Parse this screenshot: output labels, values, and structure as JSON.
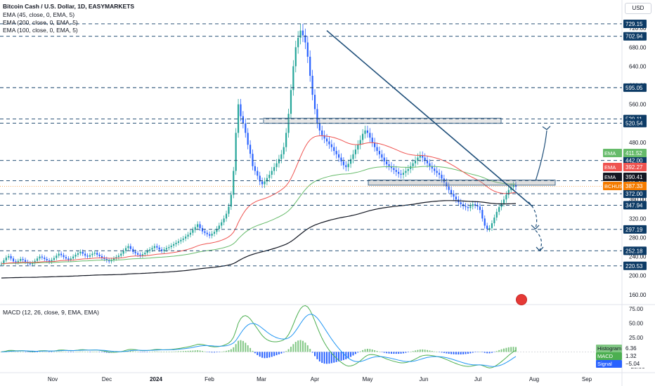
{
  "header": {
    "title": "Bitcoin Cash / U.S. Dollar, 1D, EASYMARKETS",
    "indicators": [
      "EMA (45, close, 0, EMA, 5)",
      "EMA (200, close, 0, EMA, 5)",
      "EMA (100, close, 0, EMA, 5)"
    ],
    "currency": "USD"
  },
  "macd_title": "MACD (12, 26, close, 9, EMA, EMA)",
  "colors": {
    "up": "#26a69a",
    "down": "#2962ff",
    "ema45": "#ef5350",
    "ema100": "#66bb6a",
    "ema200": "#131722",
    "level": "#0d3b66",
    "trend": "#1e4e79",
    "hist_pos": "#81c784",
    "hist_neg": "#2962ff",
    "macd": "#4caf50",
    "signal": "#2196f3"
  },
  "chart_data": [
    {
      "type": "candlestick",
      "symbol": "BCHUSD",
      "x_labels": [
        "Nov",
        "Dec",
        "2024",
        "Feb",
        "Mar",
        "Apr",
        "May",
        "Jun",
        "Jul",
        "Aug",
        "Sep"
      ],
      "y_ticks": [
        160,
        200,
        240,
        280,
        320,
        360,
        400,
        440,
        480,
        520,
        560,
        600,
        640,
        680,
        720
      ],
      "ylim": [
        145,
        735
      ],
      "series_desc": "approximate daily closes from late Oct 2023 to mid Jul 2024",
      "closes": [
        225,
        232,
        238,
        241,
        236,
        230,
        228,
        231,
        235,
        233,
        229,
        226,
        224,
        227,
        231,
        236,
        240,
        238,
        235,
        232,
        229,
        233,
        237,
        242,
        246,
        243,
        239,
        236,
        233,
        236,
        240,
        244,
        247,
        250,
        246,
        242,
        240,
        243,
        246,
        248,
        244,
        241,
        238,
        235,
        232,
        230,
        233,
        236,
        239,
        242,
        246,
        252,
        258,
        262,
        256,
        250,
        247,
        244,
        242,
        245,
        248,
        252,
        255,
        258,
        262,
        259,
        255,
        252,
        255,
        258,
        260,
        263,
        266,
        269,
        272,
        275,
        278,
        282,
        286,
        290,
        296,
        302,
        308,
        300,
        293,
        290,
        287,
        284,
        288,
        292,
        298,
        305,
        312,
        320,
        330,
        345,
        370,
        420,
        500,
        560,
        535,
        520,
        500,
        475,
        456,
        430,
        420,
        410,
        398,
        392,
        398,
        405,
        412,
        420,
        428,
        436,
        445,
        455,
        470,
        500,
        540,
        590,
        640,
        680,
        700,
        715,
        705,
        690,
        660,
        620,
        580,
        550,
        520,
        505,
        495,
        488,
        482,
        476,
        470,
        462,
        455,
        448,
        440,
        432,
        428,
        435,
        445,
        455,
        465,
        475,
        485,
        498,
        505,
        500,
        490,
        480,
        470,
        462,
        455,
        448,
        440,
        434,
        430,
        426,
        422,
        418,
        414,
        412,
        416,
        420,
        424,
        430,
        436,
        442,
        448,
        452,
        448,
        442,
        436,
        430,
        425,
        420,
        416,
        412,
        404,
        396,
        388,
        380,
        372,
        366,
        360,
        354,
        350,
        346,
        344,
        342,
        346,
        350,
        348,
        345,
        338,
        320,
        305,
        298,
        300,
        310,
        322,
        334,
        344,
        352,
        360,
        370,
        380,
        386,
        390,
        387
      ],
      "ema45_end": 392.27,
      "ema100_end": 411.52,
      "ema200_end": 390.41,
      "price_level_labels": [
        {
          "value": 729.15,
          "label": "729.15"
        },
        {
          "value": 702.94,
          "label": "702.94"
        },
        {
          "value": 595.05,
          "label": "595.05"
        },
        {
          "value": 529.11,
          "label": "529.11"
        },
        {
          "value": 520.54,
          "label": "520.54"
        },
        {
          "value": 442.0,
          "label": "442.00"
        },
        {
          "value": 399.3,
          "label": "399.30"
        },
        {
          "value": 372.0,
          "label": "372.00"
        },
        {
          "value": 347.94,
          "label": "347.94"
        },
        {
          "value": 297.19,
          "label": "297.19"
        },
        {
          "value": 252.18,
          "label": "252.18"
        },
        {
          "value": 220.53,
          "label": "220.53"
        }
      ],
      "right_tags": [
        {
          "name": "EMA",
          "value": "411.52",
          "color": "#66bb6a",
          "y": 411.52
        },
        {
          "name": "EMA",
          "value": "392.27",
          "color": "#ef5350",
          "y": 392.27
        },
        {
          "name": "EMA",
          "value": "390.41",
          "color": "#131722",
          "y": 390.41
        },
        {
          "name": "BCHUSD",
          "value": "387.33",
          "color": "#f57c00",
          "y": 387.33
        }
      ]
    },
    {
      "type": "macd",
      "y_ticks": [
        75,
        50,
        25,
        0,
        -25
      ],
      "ylim": [
        -35,
        80
      ],
      "tags": [
        {
          "name": "Histogram",
          "value": "6.36",
          "color": "#81c784"
        },
        {
          "name": "MACD",
          "value": "1.32",
          "color": "#4caf50"
        },
        {
          "name": "Signal",
          "value": "−5.04",
          "color": "#2962ff"
        }
      ]
    }
  ]
}
